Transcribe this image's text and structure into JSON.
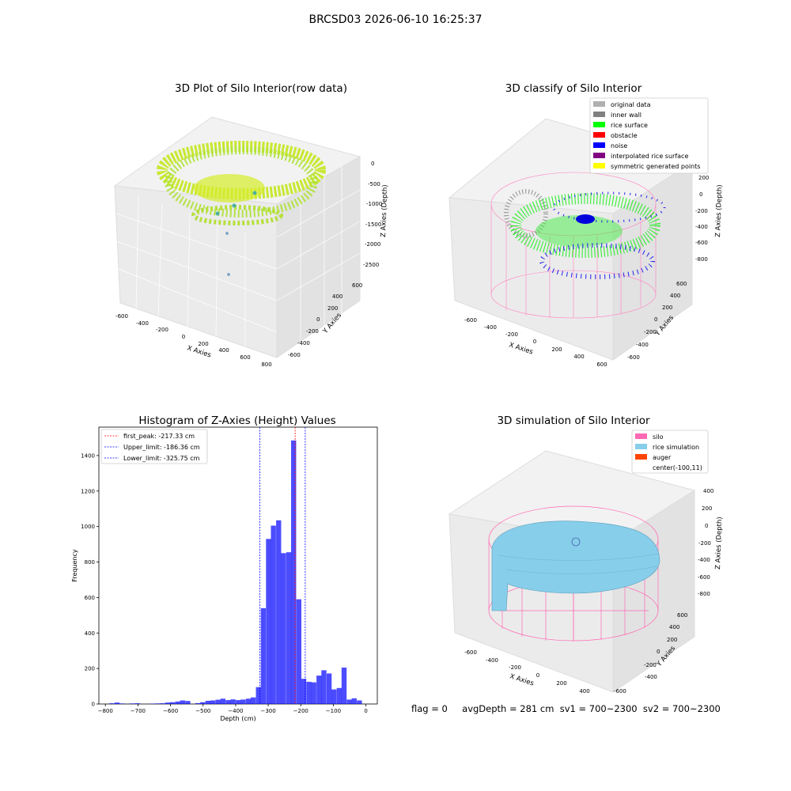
{
  "figure_title": "BRCSD03 2026-06-10 16:25:37",
  "panels": {
    "raw": {
      "title": "3D Plot of Silo Interior(row data)",
      "x_ticks": [
        "-600",
        "-400",
        "-200",
        "0",
        "200",
        "400",
        "600",
        "800"
      ],
      "y_ticks": [
        "-600",
        "-400",
        "-200",
        "0",
        "200",
        "400",
        "600"
      ],
      "z_ticks": [
        "0",
        "-500",
        "-1000",
        "-1500",
        "-2000",
        "-2500"
      ],
      "x_label": "X Axies",
      "y_label": "Y Axies",
      "z_label": "Z Axies (Depth)"
    },
    "classify": {
      "title": "3D classify of Silo Interior",
      "legend": [
        {
          "label": "original data",
          "color": "#b0b0b0"
        },
        {
          "label": "inner wall",
          "color": "#808080"
        },
        {
          "label": "rice surface",
          "color": "#00ff00"
        },
        {
          "label": "obstacle",
          "color": "#ff0000"
        },
        {
          "label": "noise",
          "color": "#0000ff"
        },
        {
          "label": "interpolated rice surface",
          "color": "#800080"
        },
        {
          "label": "symmetric generated points",
          "color": "#ffff00"
        }
      ],
      "x_ticks": [
        "-600",
        "-400",
        "-200",
        "0",
        "200",
        "400",
        "600"
      ],
      "y_ticks": [
        "-600",
        "-400",
        "-200",
        "0",
        "200",
        "400",
        "600"
      ],
      "z_ticks": [
        "200",
        "0",
        "-200",
        "-400",
        "-600",
        "-800"
      ],
      "x_label": "X Axies",
      "y_label": "Y Axies",
      "z_label": "Z Axies (Depth)"
    },
    "simulation": {
      "title": "3D simulation of Silo Interior",
      "legend": [
        {
          "label": "silo",
          "color": "#ff69b4"
        },
        {
          "label": "rice simulation",
          "color": "#87ceeb"
        },
        {
          "label": "auger",
          "color": "#ff4500"
        },
        {
          "label": "center(-100,11)",
          "color": ""
        }
      ],
      "x_ticks": [
        "-600",
        "-400",
        "-200",
        "0",
        "200",
        "400"
      ],
      "y_ticks": [
        "-600",
        "-400",
        "-200",
        "0",
        "200",
        "400",
        "600"
      ],
      "z_ticks": [
        "400",
        "200",
        "0",
        "-200",
        "-400",
        "-600",
        "-800"
      ],
      "x_label": "X Axies",
      "y_label": "Y Axies",
      "z_label": "Z Axies (Depth)"
    }
  },
  "chart_data": {
    "type": "bar",
    "title": "Histogram of Z-Axies (Height) Values",
    "xlabel": "Depth (cm)",
    "ylabel": "Frequency",
    "xlim": [
      -820,
      35
    ],
    "ylim": [
      0,
      1560
    ],
    "x_ticks": [
      -800,
      -700,
      -600,
      -500,
      -400,
      -300,
      -200,
      -100,
      0
    ],
    "y_ticks": [
      0,
      200,
      400,
      600,
      800,
      1000,
      1200,
      1400
    ],
    "bar_color": "#0000ff",
    "bin_width": 15.5,
    "bins": [
      {
        "x": -780,
        "y": 4
      },
      {
        "x": -764,
        "y": 8
      },
      {
        "x": -749,
        "y": 3
      },
      {
        "x": -718,
        "y": 3
      },
      {
        "x": -702,
        "y": 4
      },
      {
        "x": -656,
        "y": 2
      },
      {
        "x": -640,
        "y": 3
      },
      {
        "x": -625,
        "y": 4
      },
      {
        "x": -609,
        "y": 8
      },
      {
        "x": -594,
        "y": 10
      },
      {
        "x": -578,
        "y": 14
      },
      {
        "x": -563,
        "y": 20
      },
      {
        "x": -547,
        "y": 17
      },
      {
        "x": -516,
        "y": 5
      },
      {
        "x": -501,
        "y": 10
      },
      {
        "x": -485,
        "y": 18
      },
      {
        "x": -470,
        "y": 20
      },
      {
        "x": -454,
        "y": 24
      },
      {
        "x": -439,
        "y": 30
      },
      {
        "x": -423,
        "y": 22
      },
      {
        "x": -408,
        "y": 26
      },
      {
        "x": -392,
        "y": 22
      },
      {
        "x": -377,
        "y": 25
      },
      {
        "x": -361,
        "y": 30
      },
      {
        "x": -346,
        "y": 37
      },
      {
        "x": -330,
        "y": 95
      },
      {
        "x": -315,
        "y": 540
      },
      {
        "x": -299,
        "y": 930
      },
      {
        "x": -284,
        "y": 1005
      },
      {
        "x": -268,
        "y": 1035
      },
      {
        "x": -253,
        "y": 850
      },
      {
        "x": -237,
        "y": 855
      },
      {
        "x": -222,
        "y": 1485
      },
      {
        "x": -206,
        "y": 590
      },
      {
        "x": -191,
        "y": 142
      },
      {
        "x": -175,
        "y": 125
      },
      {
        "x": -160,
        "y": 122
      },
      {
        "x": -144,
        "y": 160
      },
      {
        "x": -129,
        "y": 190
      },
      {
        "x": -113,
        "y": 172
      },
      {
        "x": -98,
        "y": 82
      },
      {
        "x": -82,
        "y": 90
      },
      {
        "x": -67,
        "y": 205
      },
      {
        "x": -51,
        "y": 25
      },
      {
        "x": -36,
        "y": 32
      },
      {
        "x": -20,
        "y": 20
      }
    ],
    "vlines": [
      {
        "label": "first_peak: -217.33 cm",
        "value": -217.33,
        "color": "#ff0000"
      },
      {
        "label": "Upper_limit: -186.36 cm",
        "value": -186.36,
        "color": "#0000ff"
      },
      {
        "label": "Lower_limit: -325.75 cm",
        "value": -325.75,
        "color": "#0000ff"
      }
    ],
    "legend_position": "upper-left"
  },
  "footer": {
    "flag": "flag = 0",
    "stats": "avgDepth = 281 cm  sv1 = 700~2300  sv2 = 700~2300"
  }
}
